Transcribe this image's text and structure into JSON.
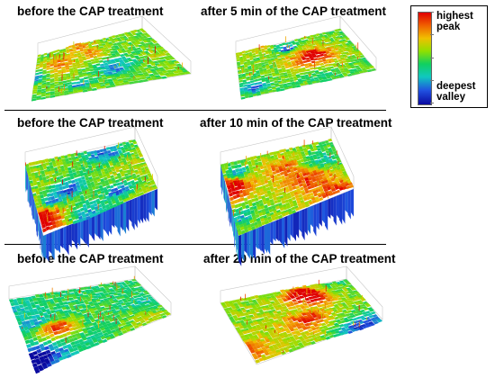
{
  "rows": [
    {
      "left_title": "before the CAP treatment",
      "right_title": "after 5 min of the CAP treatment"
    },
    {
      "left_title": "before the CAP treatment",
      "right_title": "after 10 min of the CAP treatment"
    },
    {
      "left_title": "before the CAP treatment",
      "right_title": "after 20 min of the CAP treatment"
    }
  ],
  "legend": {
    "top_label_1": "highest",
    "top_label_2": "peak",
    "bottom_label_1": "deepest",
    "bottom_label_2": "valley",
    "colors": [
      "#e00000",
      "#f06000",
      "#f0c000",
      "#90e000",
      "#10d060",
      "#10c8c0",
      "#2050e0",
      "#0a0aa0"
    ]
  }
}
